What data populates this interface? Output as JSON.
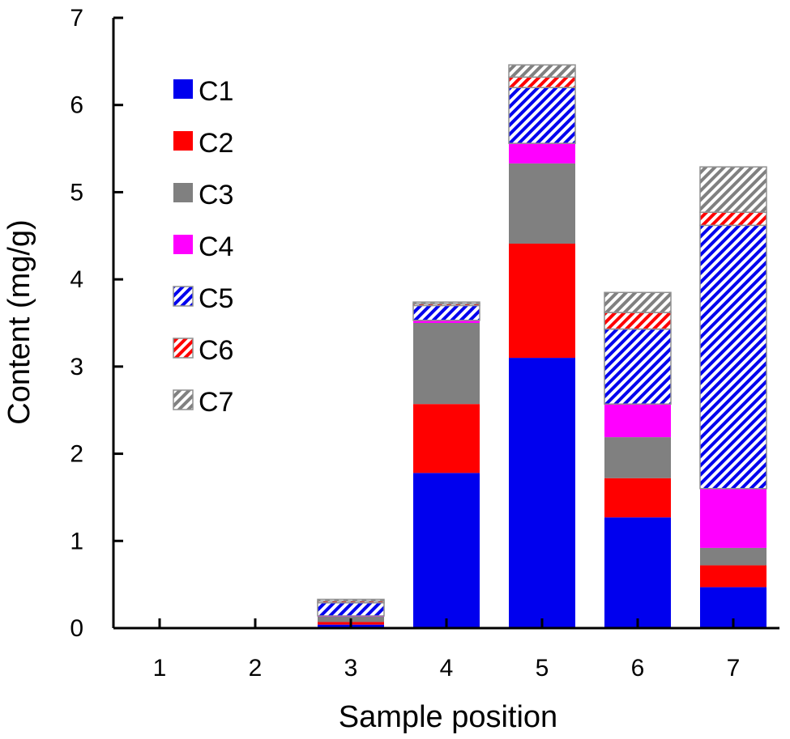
{
  "chart_data": {
    "type": "bar",
    "stacked": true,
    "title": "",
    "xlabel": "Sample position",
    "ylabel": "Content (mg/g)",
    "ylim": [
      0,
      7
    ],
    "yticks": [
      "0",
      "1",
      "2",
      "3",
      "4",
      "5",
      "6",
      "7"
    ],
    "categories": [
      "1",
      "2",
      "3",
      "4",
      "5",
      "6",
      "7"
    ],
    "legend_position": "top-left",
    "series": [
      {
        "name": "C1",
        "fill": "solid",
        "color": "#0000ee",
        "values": [
          0,
          0,
          0.04,
          1.78,
          3.1,
          1.27,
          0.47
        ]
      },
      {
        "name": "C2",
        "fill": "solid",
        "color": "#ff0000",
        "values": [
          0,
          0,
          0.03,
          0.79,
          1.31,
          0.45,
          0.25
        ]
      },
      {
        "name": "C3",
        "fill": "solid",
        "color": "#808080",
        "values": [
          0,
          0,
          0.06,
          0.93,
          0.92,
          0.47,
          0.2
        ]
      },
      {
        "name": "C4",
        "fill": "solid",
        "color": "#ff00ff",
        "values": [
          0,
          0,
          0.01,
          0.03,
          0.23,
          0.38,
          0.68
        ]
      },
      {
        "name": "C5",
        "fill": "hatched",
        "color": "#0000ee",
        "values": [
          0,
          0,
          0.15,
          0.17,
          0.64,
          0.86,
          3.02
        ]
      },
      {
        "name": "C6",
        "fill": "hatched",
        "color": "#ff0000",
        "values": [
          0,
          0,
          0.02,
          0.02,
          0.12,
          0.19,
          0.15
        ]
      },
      {
        "name": "C7",
        "fill": "hatched",
        "color": "#808080",
        "values": [
          0,
          0,
          0.02,
          0.02,
          0.14,
          0.23,
          0.52
        ]
      }
    ]
  }
}
